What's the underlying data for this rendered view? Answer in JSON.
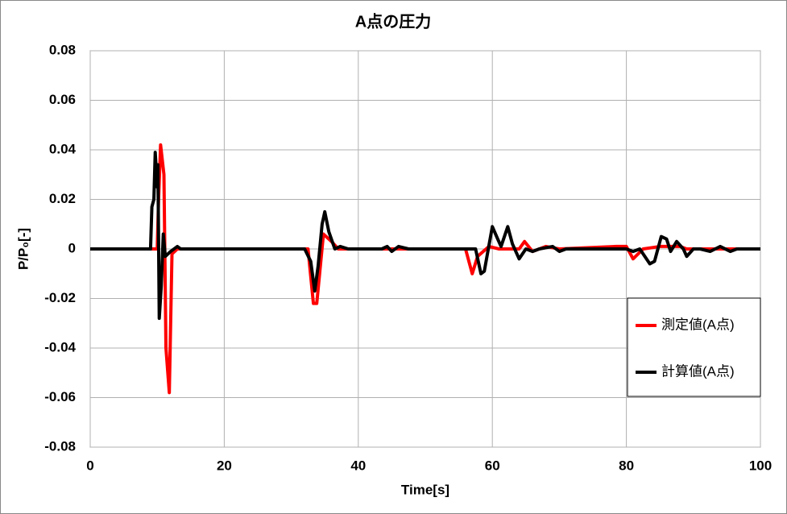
{
  "chart_data": {
    "type": "line",
    "title": "A点の圧力",
    "xlabel": "Time[s]",
    "ylabel": "P/P₀[-]",
    "xlim": [
      0,
      100
    ],
    "xticks": [
      0,
      20,
      40,
      60,
      80,
      100
    ],
    "ylim": [
      -0.08,
      0.08
    ],
    "yticks": [
      0.08,
      0.06,
      0.04,
      0.02,
      0,
      -0.02,
      -0.04,
      -0.06,
      -0.08
    ],
    "grid": true,
    "legend": "right",
    "series": [
      {
        "name": "測定値(A点)",
        "color": "#ff0000",
        "x": [
          0,
          10,
          10.2,
          10.5,
          11,
          11.3,
          11.8,
          12.2,
          13,
          32.5,
          33.3,
          33.8,
          34.8,
          36,
          37,
          55,
          56,
          57,
          57.8,
          59.5,
          61,
          64,
          64.8,
          66,
          67,
          68,
          70,
          78.5,
          80,
          81,
          82.5,
          85,
          88,
          89,
          100
        ],
        "values": [
          0,
          0,
          0.02,
          0.042,
          0.03,
          -0.04,
          -0.058,
          -0.002,
          0,
          0,
          -0.022,
          -0.022,
          0.006,
          0.003,
          0,
          0,
          0,
          -0.01,
          -0.003,
          0.001,
          0,
          0,
          0.003,
          -0.001,
          0,
          0.001,
          0,
          0.001,
          0.001,
          -0.004,
          0,
          0.001,
          0.001,
          0,
          0
        ]
      },
      {
        "name": "計算値(A点)",
        "color": "#000000",
        "x": [
          0,
          9,
          9.2,
          9.5,
          9.7,
          10,
          10.1,
          10.3,
          10.6,
          10.9,
          11.2,
          12,
          13,
          13.5,
          32,
          32.9,
          33.5,
          34,
          34.6,
          35,
          35.6,
          36.5,
          37.3,
          38.5,
          43.5,
          44.3,
          45,
          46,
          47.5,
          56,
          57.5,
          58.3,
          58.8,
          59.6,
          60,
          60.8,
          61.3,
          62.3,
          63,
          64,
          65,
          66,
          67,
          69,
          70,
          71,
          80,
          81,
          82,
          83.5,
          84.2,
          85.2,
          86,
          86.6,
          87.5,
          88.5,
          89,
          90,
          91,
          92.5,
          94,
          95.5,
          96.5,
          100
        ],
        "values": [
          0,
          0,
          0.017,
          0.02,
          0.039,
          0.025,
          0.034,
          -0.028,
          -0.015,
          0.006,
          -0.003,
          -0.001,
          0.001,
          0,
          0,
          -0.005,
          -0.017,
          -0.007,
          0.01,
          0.015,
          0.007,
          0,
          0.001,
          0,
          0,
          0.001,
          -0.001,
          0.001,
          0,
          0,
          0,
          -0.01,
          -0.009,
          0.003,
          0.009,
          0.004,
          0.001,
          0.009,
          0.002,
          -0.004,
          0,
          -0.001,
          0,
          0.001,
          -0.001,
          0,
          0,
          -0.001,
          0,
          -0.006,
          -0.005,
          0.005,
          0.004,
          -0.001,
          0.003,
          0,
          -0.003,
          0,
          0,
          -0.001,
          0.001,
          -0.001,
          0,
          0
        ]
      }
    ]
  }
}
